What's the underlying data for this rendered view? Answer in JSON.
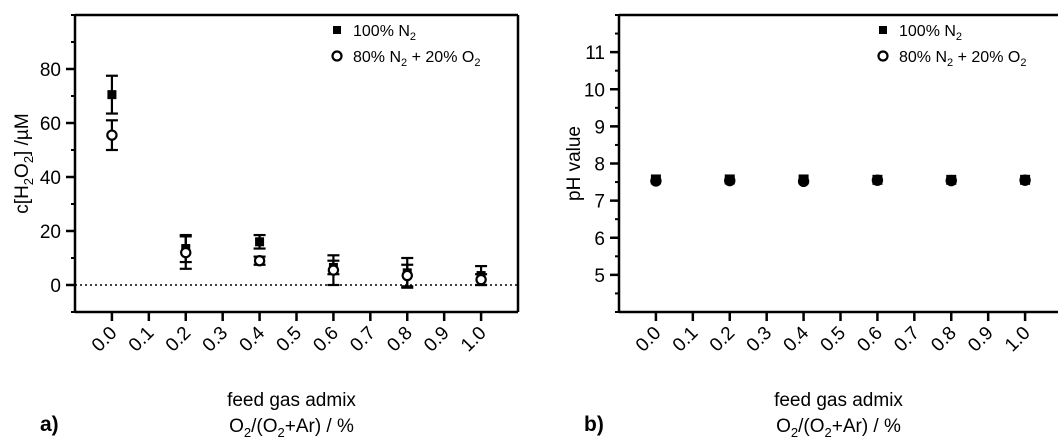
{
  "chart_data": [
    {
      "type": "scatter",
      "panel_label": "a)",
      "ylabel": "c[H2O2] /µM",
      "xlabel_line1": "feed gas admix",
      "xlabel_line2": "O2/(O2+Ar) / %",
      "x_ticks": [
        "0.0",
        "0.1",
        "0.2",
        "0.3",
        "0.4",
        "0.5",
        "0.6",
        "0.7",
        "0.8",
        "0.9",
        "1.0"
      ],
      "y_ticks": [
        "0",
        "20",
        "40",
        "60",
        "80"
      ],
      "ylim": [
        -10,
        100
      ],
      "xlim": [
        -0.1,
        1.1
      ],
      "reference_line_y": 0,
      "legend_position": "top-right",
      "series": [
        {
          "name": "100% N2",
          "marker": "square",
          "x": [
            0.0,
            0.2,
            0.4,
            0.6,
            0.8,
            1.0
          ],
          "y": [
            70.5,
            13.5,
            16,
            6.5,
            4.5,
            3.5
          ],
          "err": [
            7,
            5,
            2.5,
            2.5,
            5.5,
            3.5
          ]
        },
        {
          "name": "80% N2 + 20% O2",
          "marker": "open-circle",
          "x": [
            0.0,
            0.2,
            0.4,
            0.6,
            0.8,
            1.0
          ],
          "y": [
            55.5,
            12,
            9,
            5.5,
            3.5,
            2
          ],
          "err": [
            5.5,
            6,
            1.5,
            5.5,
            4,
            2
          ]
        }
      ]
    },
    {
      "type": "scatter",
      "panel_label": "b)",
      "ylabel": "pH value",
      "xlabel_line1": "feed gas admix",
      "xlabel_line2": "O2/(O2+Ar) / %",
      "x_ticks": [
        "0.0",
        "0.1",
        "0.2",
        "0.3",
        "0.4",
        "0.5",
        "0.6",
        "0.7",
        "0.8",
        "0.9",
        "1.0"
      ],
      "y_ticks": [
        "5",
        "6",
        "7",
        "8",
        "9",
        "10",
        "11"
      ],
      "ylim": [
        4,
        12
      ],
      "xlim": [
        -0.1,
        1.1
      ],
      "legend_position": "top-right",
      "series": [
        {
          "name": "100% N2",
          "marker": "square",
          "x": [
            0.0,
            0.2,
            0.4,
            0.6,
            0.8,
            1.0
          ],
          "y": [
            7.57,
            7.57,
            7.57,
            7.56,
            7.56,
            7.56
          ]
        },
        {
          "name": "80% N2 + 20% O2",
          "marker": "open-circle",
          "x": [
            0.0,
            0.2,
            0.4,
            0.6,
            0.8,
            1.0
          ],
          "y": [
            7.53,
            7.54,
            7.52,
            7.55,
            7.54,
            7.55
          ]
        }
      ]
    }
  ]
}
